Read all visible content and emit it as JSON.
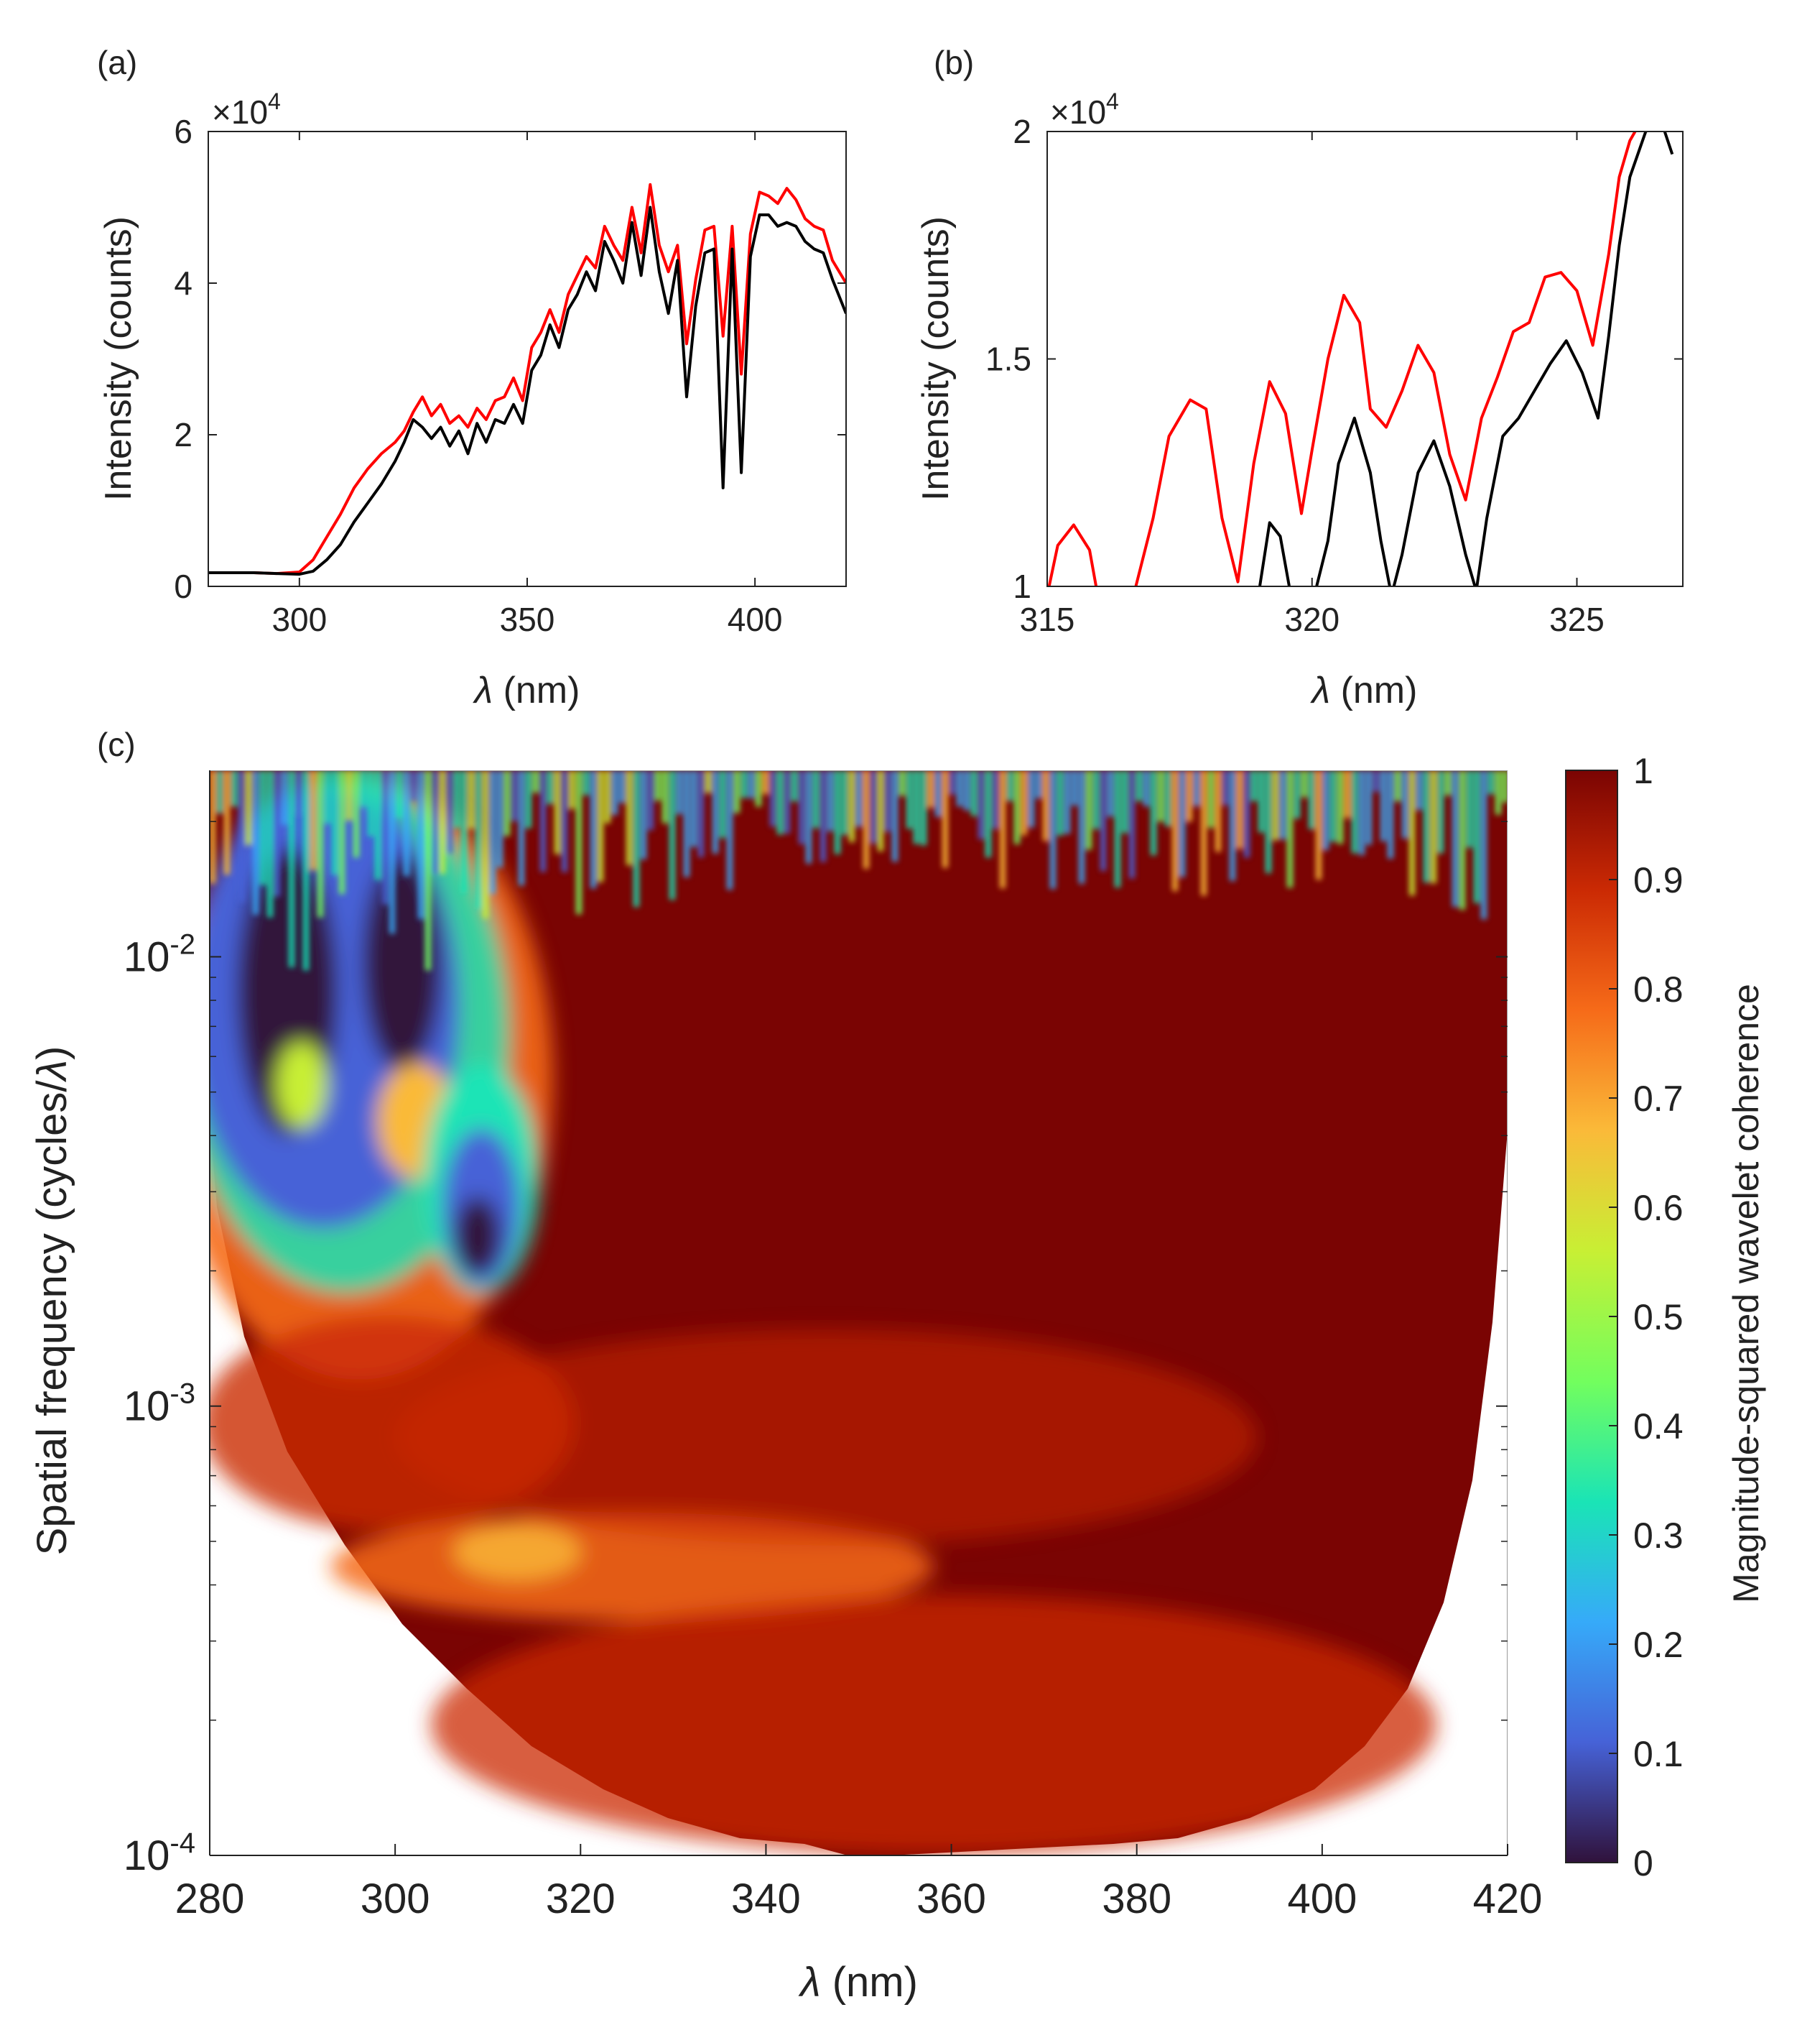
{
  "chart_data": [
    {
      "panel": "a",
      "type": "line",
      "panel_label": "(a)",
      "multiplier": "×10",
      "multiplier_exp": "4",
      "xlabel_sym": "λ",
      "xlabel_unit": " (nm)",
      "ylabel": "Intensity (counts)",
      "xlim": [
        280,
        420
      ],
      "ylim": [
        0,
        60000
      ],
      "xticks": [
        300,
        350,
        400
      ],
      "yticks": [
        0,
        20000,
        40000,
        60000
      ],
      "ytick_labels": [
        "0",
        "2",
        "4",
        "6"
      ],
      "series": [
        {
          "name": "red",
          "color": "#ff0000",
          "x": [
            280,
            290,
            295,
            300,
            303,
            306,
            309,
            312,
            315,
            318,
            321,
            323,
            325,
            327,
            329,
            331,
            333,
            335,
            337,
            339,
            341,
            343,
            345,
            347,
            349,
            351,
            353,
            355,
            357,
            359,
            361,
            363,
            365,
            367,
            369,
            371,
            373,
            375,
            377,
            379,
            381,
            383,
            385,
            387,
            389,
            391,
            393,
            395,
            397,
            399,
            401,
            403,
            405,
            407,
            409,
            411,
            413,
            415,
            417,
            420
          ],
          "values": [
            1800,
            1800,
            1700,
            1900,
            3500,
            6500,
            9500,
            13000,
            15500,
            17500,
            19000,
            20500,
            23000,
            25000,
            22500,
            24000,
            21500,
            22500,
            21000,
            23500,
            22000,
            24500,
            25000,
            27500,
            24500,
            31500,
            33500,
            36500,
            33500,
            38500,
            41000,
            43500,
            42000,
            47500,
            45000,
            43000,
            50000,
            44000,
            53000,
            45000,
            41500,
            45000,
            32000,
            40500,
            47000,
            47500,
            33000,
            47500,
            28000,
            46500,
            52000,
            51500,
            50500,
            52500,
            51000,
            48500,
            47500,
            47000,
            43000,
            40000
          ]
        },
        {
          "name": "black",
          "color": "#000000",
          "x": [
            280,
            290,
            295,
            300,
            303,
            306,
            309,
            312,
            315,
            318,
            321,
            323,
            325,
            327,
            329,
            331,
            333,
            335,
            337,
            339,
            341,
            343,
            345,
            347,
            349,
            351,
            353,
            355,
            357,
            359,
            361,
            363,
            365,
            367,
            369,
            371,
            373,
            375,
            377,
            379,
            381,
            383,
            385,
            387,
            389,
            391,
            393,
            395,
            397,
            399,
            401,
            403,
            405,
            407,
            409,
            411,
            413,
            415,
            417,
            420
          ],
          "values": [
            1800,
            1800,
            1700,
            1600,
            2000,
            3500,
            5500,
            8500,
            11000,
            13500,
            16500,
            19000,
            22000,
            21000,
            19500,
            21000,
            18500,
            20500,
            17500,
            21500,
            19000,
            22000,
            21500,
            24000,
            21500,
            28500,
            30500,
            34500,
            31500,
            36500,
            38500,
            41500,
            39000,
            45500,
            43000,
            40000,
            48000,
            41000,
            50000,
            41500,
            36000,
            43000,
            25000,
            37000,
            44000,
            44500,
            13000,
            44500,
            15000,
            43500,
            49000,
            49000,
            47500,
            48000,
            47500,
            45500,
            44500,
            44000,
            40500,
            36000
          ]
        }
      ]
    },
    {
      "panel": "b",
      "type": "line",
      "panel_label": "(b)",
      "multiplier": "×10",
      "multiplier_exp": "4",
      "xlabel_sym": "λ",
      "xlabel_unit": " (nm)",
      "ylabel": "Intensity (counts)",
      "xlim": [
        315,
        327
      ],
      "ylim": [
        10000,
        20000
      ],
      "xticks": [
        315,
        320,
        325
      ],
      "yticks": [
        10000,
        15000,
        20000
      ],
      "ytick_labels": [
        "1",
        "1.5",
        "2"
      ],
      "series": [
        {
          "name": "red",
          "color": "#ff0000",
          "x": [
            315.0,
            315.2,
            315.5,
            315.8,
            316.0,
            316.5,
            317.0,
            317.3,
            317.7,
            318.0,
            318.3,
            318.6,
            318.9,
            319.2,
            319.5,
            319.8,
            320.0,
            320.3,
            320.6,
            320.9,
            321.1,
            321.4,
            321.7,
            322.0,
            322.3,
            322.6,
            322.9,
            323.2,
            323.5,
            323.8,
            324.1,
            324.4,
            324.7,
            325.0,
            325.3,
            325.6,
            325.8,
            326.0,
            326.1
          ],
          "values": [
            9800,
            10900,
            11350,
            10800,
            9500,
            9200,
            11500,
            13300,
            14100,
            13900,
            11500,
            10100,
            12700,
            14500,
            13800,
            11600,
            13000,
            15000,
            16400,
            15800,
            13900,
            13500,
            14300,
            15300,
            14700,
            12900,
            11900,
            13700,
            14600,
            15600,
            15800,
            16800,
            16900,
            16500,
            15300,
            17300,
            19000,
            19800,
            20000
          ]
        },
        {
          "name": "black",
          "color": "#000000",
          "x": [
            319.0,
            319.2,
            319.4,
            319.6,
            319.8,
            320.0,
            320.3,
            320.5,
            320.8,
            321.1,
            321.3,
            321.5,
            321.7,
            322.0,
            322.3,
            322.6,
            322.9,
            323.1,
            323.3,
            323.6,
            323.9,
            324.2,
            324.5,
            324.8,
            325.1,
            325.4,
            325.6,
            325.8,
            326.0,
            326.3,
            326.6,
            326.8
          ],
          "values": [
            9900,
            11400,
            11100,
            9800,
            8800,
            9600,
            11000,
            12700,
            13700,
            12500,
            11000,
            9800,
            10700,
            12500,
            13200,
            12200,
            10700,
            9900,
            11500,
            13300,
            13700,
            14300,
            14900,
            15400,
            14700,
            13700,
            15500,
            17500,
            19000,
            20000,
            20200,
            19500
          ]
        }
      ]
    },
    {
      "panel": "c",
      "type": "heatmap",
      "panel_label": "(c)",
      "xlabel_sym": "λ",
      "xlabel_unit": " (nm)",
      "ylabel_pre": "Spatial frequency (cycles/",
      "ylabel_sym": "λ",
      "ylabel_post": ")",
      "colorbar_label": "Magnitude-squared wavelet coherence",
      "xlim": [
        280,
        420
      ],
      "ylim_log": [
        0.0001,
        0.026
      ],
      "xticks": [
        280,
        300,
        320,
        340,
        360,
        380,
        400,
        420
      ],
      "yticks": [
        0.0001,
        0.001,
        0.01
      ],
      "ytick_base": "10",
      "ytick_exps": [
        "-4",
        "-3",
        "-2"
      ],
      "colorbar_ticks": [
        0,
        0.1,
        0.2,
        0.3,
        0.4,
        0.5,
        0.6,
        0.7,
        0.8,
        0.9,
        1
      ],
      "colorbar_tick_labels": [
        "0",
        "0.1",
        "0.2",
        "0.3",
        "0.4",
        "0.5",
        "0.6",
        "0.7",
        "0.8",
        "0.9",
        "1"
      ],
      "colormap": [
        "#30123b",
        "#4662d7",
        "#36aaf9",
        "#1ae4b6",
        "#72fe5e",
        "#c8ef34",
        "#faba39",
        "#f66b19",
        "#cb2a04",
        "#7a0403"
      ],
      "dominant_value": 1.0,
      "notes": "high coherence (~1) over 320-410 nm for frequencies below ~6e-3 cycles/nm; low coherence (0-0.4) at 280-315 nm between 1.5e-3 and 1e-2; noisy above 1e-2; cone of influence bounds lower frequencies, reaching 1e-4 near 357 nm"
    }
  ]
}
